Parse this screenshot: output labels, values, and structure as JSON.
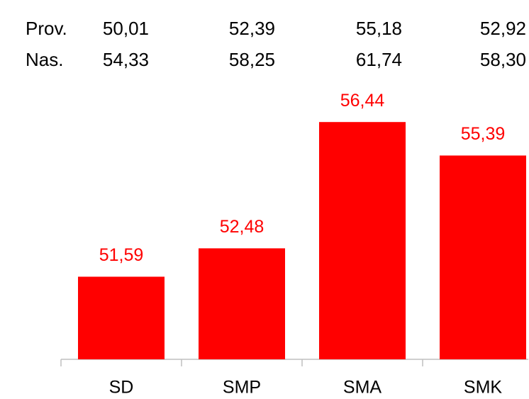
{
  "chart_data": {
    "type": "bar",
    "categories": [
      "SD",
      "SMP",
      "SMA",
      "SMK"
    ],
    "values": [
      51.59,
      52.48,
      56.44,
      55.39
    ],
    "value_labels": [
      "51,59",
      "52,48",
      "56,44",
      "55,39"
    ],
    "color": "#ff0000",
    "ylim": [
      49,
      58
    ],
    "rows": [
      {
        "label": "Prov.",
        "values": [
          50.01,
          52.39,
          55.18,
          52.92
        ],
        "value_labels": [
          "50,01",
          "52,39",
          "55,18",
          "52,92"
        ]
      },
      {
        "label": "Nas.",
        "values": [
          54.33,
          58.25,
          61.74,
          58.3
        ],
        "value_labels": [
          "54,33",
          "58,25",
          "61,74",
          "58,30"
        ]
      }
    ]
  }
}
